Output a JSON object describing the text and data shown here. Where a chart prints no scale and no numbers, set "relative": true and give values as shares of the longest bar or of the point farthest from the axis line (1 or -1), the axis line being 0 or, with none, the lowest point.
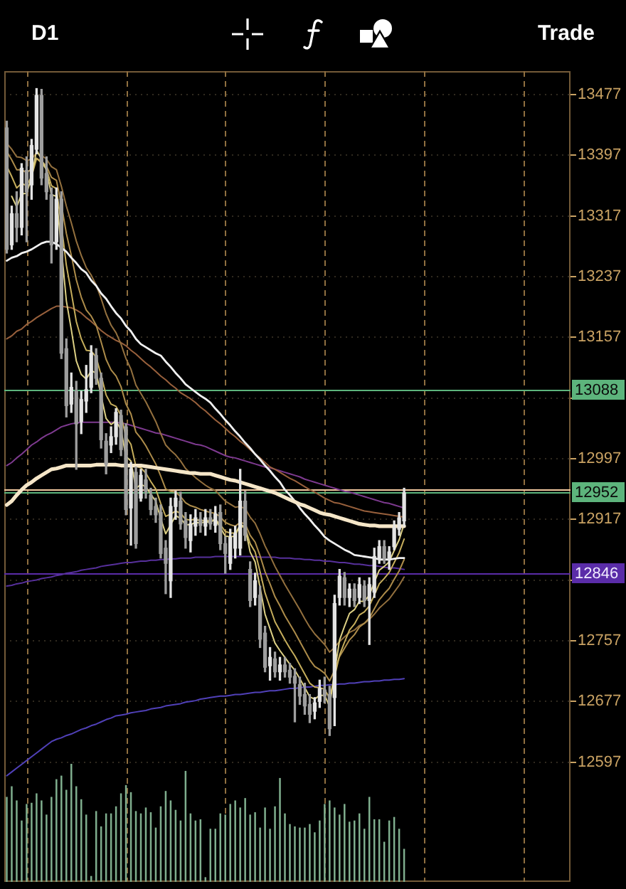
{
  "chart_data": [
    {
      "type": "candlestick",
      "title": "D1",
      "annotations": [
        "Trade"
      ],
      "categories": [
        null,
        null,
        null,
        null,
        null,
        null,
        null,
        null,
        null,
        null,
        null,
        null,
        null,
        null,
        null,
        null,
        null,
        null,
        null,
        null,
        null,
        null,
        null,
        null,
        null,
        null,
        null,
        null,
        null,
        null,
        null,
        null,
        null,
        null,
        null,
        null,
        null,
        null,
        null,
        null,
        null,
        null,
        null,
        null,
        null,
        null,
        null,
        null,
        null,
        null,
        null,
        null,
        null,
        null,
        null,
        null,
        null,
        null,
        null,
        null,
        null,
        null,
        null,
        null,
        null,
        null,
        null,
        null,
        null,
        null,
        null,
        null,
        null,
        null,
        null,
        null,
        null,
        null,
        null,
        null,
        null,
        null,
        null,
        null,
        null,
        null,
        null,
        null,
        null,
        null,
        null,
        null,
        null,
        null,
        null,
        null,
        null,
        null,
        null,
        null,
        null,
        null,
        null,
        null,
        null,
        null,
        null,
        null,
        null,
        null,
        null,
        null,
        null,
        null
      ],
      "ohlc": [
        [
          13433,
          13442,
          13268,
          13273
        ],
        [
          13279,
          13330,
          13273,
          13320
        ],
        [
          13320,
          13349,
          13283,
          13302
        ],
        [
          13302,
          13386,
          13292,
          13380
        ],
        [
          13377,
          13395,
          13283,
          13349
        ],
        [
          13358,
          13418,
          13339,
          13410
        ],
        [
          13405,
          13485,
          13399,
          13476
        ],
        [
          13476,
          13484,
          13358,
          13367
        ],
        [
          13373,
          13395,
          13339,
          13349
        ],
        [
          13345,
          13354,
          13255,
          13279
        ],
        [
          13283,
          13354,
          13273,
          13339
        ],
        [
          13339,
          13349,
          13129,
          13136
        ],
        [
          13142,
          13155,
          13052,
          13067
        ],
        [
          13069,
          13110,
          13058,
          13091
        ],
        [
          13086,
          13099,
          12983,
          13043
        ],
        [
          13046,
          13086,
          13030,
          13075
        ],
        [
          13073,
          13120,
          13058,
          13088
        ],
        [
          13091,
          13146,
          13084,
          13136
        ],
        [
          13133,
          13142,
          13095,
          13103
        ],
        [
          13103,
          13110,
          13011,
          13022
        ],
        [
          13020,
          13030,
          12977,
          12990
        ],
        [
          13015,
          13039,
          13005,
          13026
        ],
        [
          13026,
          13063,
          13016,
          13058
        ],
        [
          13054,
          13061,
          13001,
          13009
        ],
        [
          13039,
          13043,
          12923,
          12930
        ],
        [
          12932,
          12992,
          12883,
          12983
        ],
        [
          12979,
          12986,
          12879,
          12885
        ],
        [
          12945,
          12983,
          12941,
          12975
        ],
        [
          12969,
          12983,
          12945,
          12954
        ],
        [
          12949,
          12958,
          12923,
          12930
        ],
        [
          12934,
          12945,
          12913,
          12923
        ],
        [
          12926,
          12936,
          12866,
          12872
        ],
        [
          12879,
          12889,
          12819,
          12859
        ],
        [
          12836,
          12945,
          12814,
          12934
        ],
        [
          12934,
          12954,
          12917,
          12945
        ],
        [
          12941,
          12953,
          12904,
          12911
        ],
        [
          12915,
          12926,
          12879,
          12893
        ],
        [
          12889,
          12923,
          12874,
          12911
        ],
        [
          12908,
          12930,
          12896,
          12919
        ],
        [
          12917,
          12926,
          12900,
          12909
        ],
        [
          12908,
          12930,
          12896,
          12919
        ],
        [
          12919,
          12930,
          12904,
          12911
        ],
        [
          12909,
          12934,
          12900,
          12924
        ],
        [
          12926,
          12936,
          12877,
          12885
        ],
        [
          12885,
          12894,
          12846,
          12872
        ],
        [
          12859,
          12904,
          12851,
          12893
        ],
        [
          12879,
          12908,
          12866,
          12898
        ],
        [
          12879,
          12983,
          12870,
          12941
        ],
        [
          12941,
          12954,
          12889,
          12896
        ],
        [
          12851,
          12861,
          12802,
          12810
        ],
        [
          12814,
          12846,
          12804,
          12836
        ],
        [
          12817,
          12829,
          12748,
          12759
        ],
        [
          12767,
          12776,
          12716,
          12722
        ],
        [
          12724,
          12748,
          12705,
          12735
        ],
        [
          12733,
          12742,
          12709,
          12716
        ],
        [
          12716,
          12735,
          12705,
          12725
        ],
        [
          12725,
          12735,
          12709,
          12716
        ],
        [
          12718,
          12727,
          12701,
          12709
        ],
        [
          12710,
          12720,
          12650,
          12701
        ],
        [
          12699,
          12709,
          12673,
          12684
        ],
        [
          12686,
          12701,
          12660,
          12671
        ],
        [
          12673,
          12686,
          12649,
          12660
        ],
        [
          12664,
          12682,
          12654,
          12675
        ],
        [
          12677,
          12705,
          12669,
          12694
        ],
        [
          12692,
          12709,
          12675,
          12684
        ],
        [
          12686,
          12697,
          12632,
          12641
        ],
        [
          12682,
          12817,
          12645,
          12806
        ],
        [
          12814,
          12851,
          12804,
          12842
        ],
        [
          12840,
          12847,
          12804,
          12814
        ],
        [
          12814,
          12832,
          12802,
          12825
        ],
        [
          12825,
          12832,
          12802,
          12810
        ],
        [
          12814,
          12840,
          12806,
          12831
        ],
        [
          12829,
          12836,
          12802,
          12810
        ],
        [
          12810,
          12840,
          12752,
          12831
        ],
        [
          12821,
          12879,
          12814,
          12868
        ],
        [
          12866,
          12889,
          12859,
          12881
        ],
        [
          12881,
          12889,
          12859,
          12866
        ],
        [
          12866,
          12881,
          12851,
          12874
        ],
        [
          12881,
          12915,
          12877,
          12906
        ],
        [
          12904,
          12926,
          12896,
          12919
        ],
        [
          12915,
          12958,
          12908,
          12952
        ],
        null,
        null,
        null,
        null,
        null,
        null,
        null,
        null,
        null,
        null,
        null,
        null,
        null,
        null,
        null,
        null,
        null,
        null,
        null,
        null,
        null,
        null,
        null,
        null,
        null,
        null,
        null,
        null,
        null,
        null,
        null,
        null,
        null
      ],
      "colors": [
        "#9e9e9e",
        "#e4e4e4",
        "#9e9e9e",
        "#e4e4e4",
        "#9e9e9e",
        "#e4e4e4",
        "#e4e4e4",
        "#9e9e9e",
        "#9e9e9e",
        "#9e9e9e",
        "#e4e4e4",
        "#9e9e9e",
        "#9e9e9e",
        "#e4e4e4",
        "#9e9e9e",
        "#e4e4e4",
        "#e4e4e4",
        "#e4e4e4",
        "#9e9e9e",
        "#9e9e9e",
        "#9e9e9e",
        "#e4e4e4",
        "#e4e4e4",
        "#9e9e9e",
        "#9e9e9e",
        "#e4e4e4",
        "#9e9e9e",
        "#e4e4e4",
        "#9e9e9e",
        "#9e9e9e",
        "#9e9e9e",
        "#9e9e9e",
        "#9e9e9e",
        "#e4e4e4",
        "#e4e4e4",
        "#9e9e9e",
        "#9e9e9e",
        "#e4e4e4",
        "#e4e4e4",
        "#9e9e9e",
        "#e4e4e4",
        "#9e9e9e",
        "#e4e4e4",
        "#9e9e9e",
        "#9e9e9e",
        "#e4e4e4",
        "#e4e4e4",
        "#e4e4e4",
        "#9e9e9e",
        "#9e9e9e",
        "#e4e4e4",
        "#9e9e9e",
        "#9e9e9e",
        "#e4e4e4",
        "#9e9e9e",
        "#e4e4e4",
        "#9e9e9e",
        "#9e9e9e",
        "#9e9e9e",
        "#9e9e9e",
        "#9e9e9e",
        "#9e9e9e",
        "#e4e4e4",
        "#e4e4e4",
        "#9e9e9e",
        "#9e9e9e",
        "#e4e4e4",
        "#e4e4e4",
        "#9e9e9e",
        "#e4e4e4",
        "#9e9e9e",
        "#e4e4e4",
        "#9e9e9e",
        "#e4e4e4",
        "#e4e4e4",
        "#e4e4e4",
        "#9e9e9e",
        "#e4e4e4",
        "#e4e4e4",
        "#e4e4e4",
        "#e4e4e4",
        null,
        null,
        null,
        null,
        null,
        null,
        null,
        null,
        null,
        null,
        null,
        null,
        null,
        null,
        null,
        null,
        null,
        null,
        null,
        null,
        null,
        null,
        null,
        null,
        null,
        null,
        null,
        null,
        null,
        null,
        null,
        null,
        null
      ],
      "series": [
        {
          "type": "line",
          "color": "#f5e6c8",
          "values": [
            12936,
            12941,
            12949,
            12956,
            12962,
            12966,
            12971,
            12975,
            12979,
            12983,
            12984,
            12986,
            12988,
            12988,
            12988,
            12988,
            12988,
            12988,
            12989,
            12989,
            12989,
            12989,
            12989,
            12988,
            12988,
            12988,
            12988,
            12988,
            12987,
            12986,
            12985,
            12984,
            12983,
            12982,
            12981,
            12980,
            12979,
            12978,
            12978,
            12977,
            12977,
            12977,
            12975,
            12973,
            12971,
            12969,
            12968,
            12966,
            12964,
            12962,
            12960,
            12958,
            12956,
            12954,
            12952,
            12949,
            12946,
            12943,
            12940,
            12937,
            12935,
            12932,
            12929,
            12926,
            12924,
            12923,
            12921,
            12919,
            12917,
            12915,
            12913,
            12911,
            12910,
            12909,
            12909,
            12908,
            12908,
            12908,
            12908,
            12908,
            12908,
            null,
            null,
            null,
            null,
            null,
            null,
            null,
            null,
            null,
            null,
            null,
            null,
            null,
            null,
            null,
            null,
            null,
            null,
            null,
            null,
            null,
            null,
            null,
            null,
            null,
            null,
            null,
            null,
            null,
            null,
            null,
            null,
            null
          ]
        },
        {
          "type": "line",
          "color": "#f0f0f0",
          "values": [
            13258,
            13262,
            13264,
            13268,
            13270,
            13273,
            13277,
            13281,
            13283,
            13283,
            13280,
            13275,
            13270,
            13262,
            13255,
            13247,
            13242,
            13232,
            13225,
            13215,
            13208,
            13198,
            13189,
            13182,
            13172,
            13165,
            13155,
            13148,
            13144,
            13140,
            13136,
            13133,
            13125,
            13118,
            13110,
            13103,
            13095,
            13090,
            13085,
            13080,
            13076,
            13071,
            13063,
            13056,
            13048,
            13041,
            13033,
            13026,
            13018,
            13011,
            13003,
            12996,
            12988,
            12981,
            12973,
            12966,
            12956,
            12949,
            12941,
            12932,
            12924,
            12917,
            12909,
            12902,
            12894,
            12889,
            12885,
            12881,
            12877,
            12874,
            12870,
            12869,
            12868,
            12867,
            12866,
            12864,
            12864,
            12864,
            12865,
            12866,
            12866,
            null,
            null,
            null,
            null,
            null,
            null,
            null,
            null,
            null,
            null,
            null,
            null,
            null,
            null,
            null,
            null,
            null,
            null,
            null,
            null,
            null,
            null,
            null,
            null,
            null,
            null,
            null,
            null,
            null,
            null,
            null,
            null,
            null
          ]
        },
        {
          "type": "line",
          "color": "#ddd084",
          "values": [
            null,
            13343,
            13329,
            13346,
            13347,
            13368,
            13404,
            13392,
            13377,
            13345,
            13343,
            13274,
            13205,
            13167,
            13126,
            13108,
            13102,
            13113,
            13110,
            13080,
            13050,
            13042,
            13047,
            13035,
            13000,
            12994,
            12958,
            12963,
            12960,
            12950,
            12941,
            12918,
            12898,
            12910,
            12922,
            12918,
            12910,
            12910,
            12913,
            12912,
            12914,
            12913,
            12917,
            12906,
            12895,
            12894,
            12895,
            12911,
            12906,
            12874,
            12861,
            12827,
            12792,
            12773,
            12754,
            12744,
            12735,
            12726,
            12718,
            12707,
            12695,
            12683,
            12680,
            12685,
            12685,
            12670,
            12716,
            12758,
            12776,
            12793,
            12798,
            12809,
            12809,
            12817,
            12834,
            12850,
            12855,
            12861,
            12876,
            12890,
            12911,
            null,
            null,
            null,
            null,
            null,
            null,
            null,
            null,
            null,
            null,
            null,
            null,
            null,
            null,
            null,
            null,
            null,
            null,
            null,
            null,
            null,
            null,
            null,
            null,
            null,
            null,
            null,
            null,
            null,
            null,
            null,
            null,
            null
          ]
        },
        {
          "type": "line",
          "color": "#c6ae5c",
          "values": [
            13383,
            13369,
            13354,
            13360,
            13357,
            13369,
            13393,
            13387,
            13379,
            13357,
            13353,
            13305,
            13252,
            13216,
            13178,
            13155,
            13140,
            13139,
            13131,
            13107,
            13081,
            13069,
            13066,
            13054,
            13026,
            13016,
            12987,
            12985,
            12978,
            12967,
            12957,
            12938,
            12921,
            12924,
            12928,
            12925,
            12917,
            12916,
            12917,
            12915,
            12916,
            12915,
            12917,
            12910,
            12901,
            12899,
            12899,
            12908,
            12906,
            12885,
            12874,
            12848,
            12820,
            12801,
            12782,
            12770,
            12758,
            12747,
            12737,
            12725,
            12713,
            12701,
            12696,
            12695,
            12693,
            12681,
            12709,
            12738,
            12755,
            12771,
            12779,
            12791,
            12795,
            12803,
            12817,
            12832,
            12839,
            12847,
            12860,
            12873,
            12891,
            null,
            null,
            null,
            null,
            null,
            null,
            null,
            null,
            null,
            null,
            null,
            null,
            null,
            null,
            null,
            null,
            null,
            null,
            null,
            null,
            null,
            null,
            null,
            null,
            null,
            null,
            null,
            null,
            null,
            null,
            null,
            null,
            null
          ]
        },
        {
          "type": "line",
          "color": "#ad8c4a",
          "values": [
            13402,
            13391,
            13378,
            13378,
            13374,
            13379,
            13393,
            13389,
            13383,
            13368,
            13364,
            13332,
            13294,
            13265,
            13233,
            13210,
            13193,
            13185,
            13173,
            13151,
            13128,
            13114,
            13106,
            13092,
            13069,
            13056,
            13032,
            13024,
            13014,
            13002,
            12990,
            12974,
            12957,
            12954,
            12953,
            12947,
            12939,
            12935,
            12933,
            12930,
            12928,
            12926,
            12925,
            12920,
            12913,
            12910,
            12908,
            12913,
            12911,
            12896,
            12887,
            12869,
            12848,
            12832,
            12815,
            12803,
            12790,
            12779,
            12768,
            12756,
            12744,
            12732,
            12723,
            12719,
            12714,
            12704,
            12718,
            12736,
            12747,
            12758,
            12765,
            12775,
            12780,
            12787,
            12799,
            12811,
            12819,
            12826,
            12838,
            12849,
            12864,
            null,
            null,
            null,
            null,
            null,
            null,
            null,
            null,
            null,
            null,
            null,
            null,
            null,
            null,
            null,
            null,
            null,
            null,
            null,
            null,
            null,
            null,
            null,
            null,
            null,
            null,
            null,
            null,
            null,
            null,
            null,
            null,
            null
          ]
        },
        {
          "type": "line",
          "color": "#93703e",
          "values": [
            13413,
            13405,
            13395,
            13394,
            13390,
            13392,
            13400,
            13397,
            13392,
            13382,
            13378,
            13356,
            13330,
            13308,
            13284,
            13265,
            13249,
            13239,
            13226,
            13208,
            13188,
            13173,
            13163,
            13148,
            13129,
            13115,
            13094,
            13083,
            13072,
            13059,
            13046,
            13030,
            13015,
            13008,
            13002,
            12994,
            12984,
            12978,
            12972,
            12967,
            12962,
            12958,
            12955,
            12948,
            12941,
            12937,
            12933,
            12934,
            12931,
            12920,
            12912,
            12898,
            12882,
            12869,
            12855,
            12843,
            12831,
            12820,
            12809,
            12798,
            12786,
            12775,
            12766,
            12759,
            12752,
            12742,
            12748,
            12756,
            12762,
            12768,
            12771,
            12777,
            12780,
            12785,
            12792,
            12800,
            12806,
            12812,
            12821,
            12830,
            12841,
            null,
            null,
            null,
            null,
            null,
            null,
            null,
            null,
            null,
            null,
            null,
            null,
            null,
            null,
            null,
            null,
            null,
            null,
            null,
            null,
            null,
            null,
            null,
            null,
            null,
            null,
            null,
            null,
            null,
            null,
            null,
            null,
            null
          ]
        },
        {
          "type": "line",
          "color": "#98603c",
          "values": [
            13155,
            13159,
            13165,
            13168,
            13174,
            13178,
            13183,
            13187,
            13191,
            13195,
            13198,
            13198,
            13197,
            13196,
            13193,
            13189,
            13183,
            13178,
            13172,
            13166,
            13161,
            13157,
            13153,
            13150,
            13146,
            13140,
            13135,
            13129,
            13123,
            13118,
            13112,
            13106,
            13101,
            13095,
            13090,
            13084,
            13080,
            13076,
            13071,
            13065,
            13060,
            13054,
            13048,
            13043,
            13037,
            13031,
            13026,
            13020,
            13015,
            13009,
            13003,
            12998,
            12992,
            12986,
            12983,
            12979,
            12975,
            12971,
            12968,
            12964,
            12960,
            12956,
            12953,
            12949,
            12945,
            12942,
            12939,
            12938,
            12936,
            12934,
            12932,
            12930,
            12928,
            12927,
            12926,
            12925,
            12924,
            12923,
            12922,
            12921,
            12920,
            null,
            null,
            null,
            null,
            null,
            null,
            null,
            null,
            null,
            null,
            null,
            null,
            null,
            null,
            null,
            null,
            null,
            null,
            null,
            null,
            null,
            null,
            null,
            null,
            null,
            null,
            null,
            null,
            null,
            null,
            null,
            null,
            null
          ]
        },
        {
          "type": "line",
          "color": "#7e3a90",
          "values": [
            12988,
            12992,
            12998,
            13003,
            13009,
            13015,
            13019,
            13024,
            13028,
            13031,
            13035,
            13039,
            13041,
            13043,
            13044,
            13045,
            13045,
            13045,
            13045,
            13045,
            13045,
            13045,
            13045,
            13044,
            13043,
            13041,
            13039,
            13037,
            13035,
            13033,
            13031,
            13030,
            13028,
            13026,
            13024,
            13022,
            13020,
            13018,
            13016,
            13015,
            13013,
            13010,
            13007,
            13004,
            13001,
            12999,
            12998,
            12996,
            12994,
            12992,
            12990,
            12988,
            12986,
            12985,
            12983,
            12981,
            12979,
            12977,
            12975,
            12973,
            12970,
            12968,
            12966,
            12964,
            12962,
            12960,
            12958,
            12956,
            12954,
            12953,
            12951,
            12949,
            12947,
            12945,
            12943,
            12941,
            12939,
            12938,
            12936,
            12934,
            12932,
            null,
            null,
            null,
            null,
            null,
            null,
            null,
            null,
            null,
            null,
            null,
            null,
            null,
            null,
            null,
            null,
            null,
            null,
            null,
            null,
            null,
            null,
            null,
            null,
            null,
            null,
            null,
            null,
            null,
            null,
            null,
            null,
            null
          ]
        },
        {
          "type": "line",
          "color": "#57309c",
          "values": [
            12829,
            12830,
            12832,
            12833,
            12835,
            12836,
            12837,
            12839,
            12840,
            12841,
            12843,
            12844,
            12846,
            12847,
            12848,
            12850,
            12851,
            12852,
            12853,
            12855,
            12856,
            12857,
            12858,
            12859,
            12860,
            12860,
            12861,
            12862,
            12862,
            12863,
            12863,
            12864,
            12864,
            12865,
            12865,
            12866,
            12866,
            12866,
            12867,
            12867,
            12867,
            12867,
            12868,
            12868,
            12868,
            12868,
            12868,
            12868,
            12868,
            12868,
            12868,
            12867,
            12867,
            12867,
            12867,
            12866,
            12866,
            12866,
            12865,
            12865,
            12864,
            12864,
            12863,
            12863,
            12862,
            12862,
            12861,
            12860,
            12860,
            12859,
            12858,
            12858,
            12857,
            12856,
            12856,
            12855,
            12854,
            12853,
            12853,
            12852,
            12851,
            null,
            null,
            null,
            null,
            null,
            null,
            null,
            null,
            null,
            null,
            null,
            null,
            null,
            null,
            null,
            null,
            null,
            null,
            null,
            null,
            null,
            null,
            null,
            null,
            null,
            null,
            null,
            null,
            null,
            null,
            null,
            null,
            null
          ]
        },
        {
          "type": "line",
          "color": "#5040b8",
          "values": [
            12579,
            12584,
            12589,
            12594,
            12599,
            12604,
            12609,
            12614,
            12619,
            12624,
            12627,
            12629,
            12632,
            12634,
            12637,
            12640,
            12642,
            12645,
            12647,
            12650,
            12653,
            12655,
            12658,
            12659,
            12660,
            12662,
            12663,
            12664,
            12665,
            12667,
            12668,
            12669,
            12671,
            12672,
            12673,
            12674,
            12676,
            12677,
            12678,
            12680,
            12681,
            12682,
            12683,
            12684,
            12684,
            12685,
            12686,
            12686,
            12687,
            12688,
            12689,
            12689,
            12690,
            12691,
            12691,
            12692,
            12693,
            12694,
            12694,
            12695,
            12696,
            12696,
            12697,
            12698,
            12698,
            12699,
            12699,
            12700,
            12700,
            12701,
            12701,
            12702,
            12703,
            12703,
            12704,
            12704,
            12705,
            12705,
            12706,
            12706,
            12707,
            null,
            null,
            null,
            null,
            null,
            null,
            null,
            null,
            null,
            null,
            null,
            null,
            null,
            null,
            null,
            null,
            null,
            null,
            null,
            null,
            null,
            null,
            null,
            null,
            null,
            null,
            null,
            null,
            null,
            null,
            null,
            null,
            null
          ]
        }
      ],
      "ylim": [
        12439,
        13508
      ],
      "yticks": [
        12597,
        12677,
        12757,
        {
          "value": 12837,
          "label": null
        },
        12917,
        12997,
        {
          "value": 13077,
          "label": null
        },
        13157,
        13237,
        13317,
        13397,
        13477
      ],
      "grid": "y",
      "tick_labels": "y",
      "ref_lines": [
        {
          "axis": "y",
          "value": 13088,
          "label": "13088",
          "color": "#5db47c"
        },
        {
          "axis": "y",
          "value": 12957,
          "color": "#f3c9a0"
        },
        {
          "axis": "y",
          "value": 12952,
          "label": "12952",
          "color": "#5db47c"
        },
        {
          "axis": "y",
          "value": 12846,
          "label": "12846",
          "color": "#5a2ca8"
        }
      ]
    },
    {
      "type": "bar",
      "relative": true,
      "tick_labels": false,
      "color": "#7fae8e",
      "categories": [
        null,
        null,
        null,
        null,
        null,
        null,
        null,
        null,
        null,
        null,
        null,
        null,
        null,
        null,
        null,
        null,
        null,
        null,
        null,
        null,
        null,
        null,
        null,
        null,
        null,
        null,
        null,
        null,
        null,
        null,
        null,
        null,
        null,
        null,
        null,
        null,
        null,
        null,
        null,
        null,
        null,
        null,
        null,
        null,
        null,
        null,
        null,
        null,
        null,
        null,
        null,
        null,
        null,
        null,
        null,
        null,
        null,
        null,
        null,
        null,
        null,
        null,
        null,
        null,
        null,
        null,
        null,
        null,
        null,
        null,
        null,
        null,
        null,
        null,
        null,
        null,
        null,
        null,
        null,
        null,
        null,
        null,
        null,
        null,
        null,
        null,
        null,
        null,
        null,
        null,
        null,
        null,
        null,
        null,
        null,
        null,
        null,
        null,
        null,
        null,
        null,
        null,
        null,
        null,
        null,
        null,
        null,
        null,
        null,
        null,
        null,
        null,
        null,
        null
      ],
      "values": [
        0.72,
        0.81,
        0.69,
        0.52,
        0.66,
        0.67,
        0.75,
        0.69,
        0.57,
        0.72,
        0.87,
        0.9,
        0.78,
        1,
        0.81,
        0.7,
        0.57,
        0.05,
        0.6,
        0.47,
        0.58,
        0.58,
        0.64,
        0.75,
        0.82,
        0.76,
        0.6,
        0.58,
        0.63,
        0.59,
        0.46,
        0.64,
        0.77,
        0.69,
        0.61,
        0.52,
        0.94,
        0.58,
        0.52,
        0.53,
        0.04,
        0.45,
        0.45,
        0.58,
        0.57,
        0.66,
        0.69,
        0.63,
        0.71,
        0.57,
        0.59,
        0.46,
        0.63,
        0.45,
        0.64,
        0.88,
        0.58,
        0.49,
        0.47,
        0.46,
        0.46,
        0.49,
        0.42,
        0.52,
        0.66,
        0.69,
        0.63,
        0.57,
        0.66,
        0.51,
        0.52,
        0.58,
        0.45,
        0.72,
        0.53,
        0.53,
        0.34,
        0.52,
        0.55,
        0.45,
        0.28,
        null,
        null,
        null,
        null,
        null,
        null,
        null,
        null,
        null,
        null,
        null,
        null,
        null,
        null,
        null,
        null,
        null,
        null,
        null,
        null,
        null,
        null,
        null,
        null,
        null,
        null,
        null,
        null,
        null,
        null,
        null,
        null,
        null
      ]
    }
  ]
}
